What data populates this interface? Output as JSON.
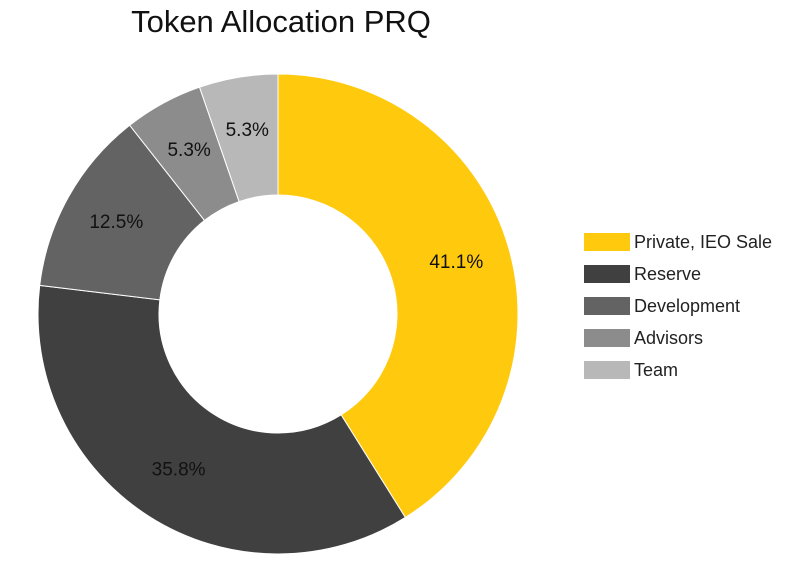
{
  "chart_data": {
    "type": "pie",
    "variant": "donut",
    "title": "Token Allocation PRQ",
    "categories": [
      "Private, IEO Sale",
      "Reserve",
      "Development",
      "Advisors",
      "Team"
    ],
    "values": [
      41.1,
      35.8,
      12.5,
      5.3,
      5.3
    ],
    "value_labels": [
      "41.1%",
      "35.8%",
      "12.5%",
      "5.3%",
      "5.3%"
    ],
    "unit": "%",
    "start_angle_deg": 0,
    "direction": "clockwise",
    "legend_position": "right",
    "colors": [
      "#FFC90E",
      "#404040",
      "#636363",
      "#8C8C8C",
      "#B8B8B8"
    ],
    "label_colors": [
      "#111111",
      "#111111",
      "#111111",
      "#111111",
      "#111111"
    ]
  }
}
